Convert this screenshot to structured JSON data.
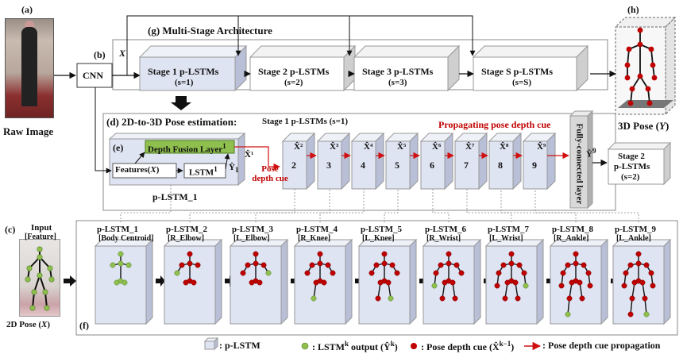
{
  "labels": {
    "a": "(a)",
    "raw_image": "Raw Image",
    "b": "(b)",
    "cnn": "CNN",
    "x_input": "X",
    "g": "(g) Multi-Stage Architecture",
    "h": "(h)",
    "pose3d": "3D Pose (",
    "pose3d_var": "Y",
    "pose3d_end": ")",
    "d": "(d) 2D-to-3D Pose estimation:",
    "d_sub": "Stage 1 p-LSTMs (s=1)",
    "propagating": "Propagating pose depth cue",
    "e": "(e)",
    "depth_fusion": "Depth Fusion Layer",
    "depth_fusion_sup": "1",
    "features": "Features(",
    "features_var": "X",
    "features_end": ")",
    "lstm1": "LSTM",
    "lstm1_sup": "1",
    "plstm1": "p-LSTM_1",
    "pose_depth_cue": [
      "Pose",
      "depth cue"
    ],
    "fc_layer": "Fully-connected layer",
    "c": "(c)",
    "input": "Input",
    "feature": "[Feature]",
    "pose2d": "2D Pose (",
    "pose2d_var": "X",
    "pose2d_end": ")",
    "f": "(f)",
    "y9_hat": "Ŷ",
    "y9_sup": "9",
    "y1": "Ŷ",
    "y1_sub": "1"
  },
  "stages": [
    {
      "title": "Stage 1 p-LSTMs",
      "sub": "(s=1)"
    },
    {
      "title": "Stage 2 p-LSTMs",
      "sub": "(s=2)"
    },
    {
      "title": "Stage 3 p-LSTMs",
      "sub": "(s=3)"
    },
    {
      "title": "Stage S p-LSTMs",
      "sub": "(s=S)"
    }
  ],
  "stage2_out": [
    "Stage 2",
    "p-LSTMs",
    "(s=2)"
  ],
  "chain_numbers": [
    "2",
    "3",
    "4",
    "5",
    "6",
    "7",
    "8",
    "9"
  ],
  "x_hats": [
    "X̂¹",
    "X̂²",
    "X̂³",
    "X̂⁴",
    "X̂⁵",
    "X̂⁶",
    "X̂⁷",
    "X̂⁸",
    "X̂⁹"
  ],
  "plstm_panels": [
    {
      "name": "p-LSTM_1",
      "joint": "[Body Centroid]"
    },
    {
      "name": "p-LSTM_2",
      "joint": "[R_Elbow]"
    },
    {
      "name": "p-LSTM_3",
      "joint": "[L_Elbow]"
    },
    {
      "name": "p-LSTM_4",
      "joint": "[R_Knee]"
    },
    {
      "name": "p-LSTM_5",
      "joint": "[L_Knee]"
    },
    {
      "name": "p-LSTM_6",
      "joint": "[R_Wrist]"
    },
    {
      "name": "p-LSTM_7",
      "joint": "[L_Wrist]"
    },
    {
      "name": "p-LSTM_8",
      "joint": "[R_Ankle]"
    },
    {
      "name": "p-LSTM_9",
      "joint": "[L_Ankle]"
    }
  ],
  "legend": [
    {
      "marker": "box",
      "text": ": p-LSTM"
    },
    {
      "marker": "green",
      "text": ": LSTM",
      "sup": "k",
      "rest": " output (Ŷ",
      "sup2": "k",
      "end": ")"
    },
    {
      "marker": "red",
      "text": ": Pose depth cue (X̂",
      "sup": "k−1",
      "end": ")"
    },
    {
      "marker": "arrow",
      "text": ": Pose depth cue propagation"
    }
  ],
  "colors": {
    "box_face": "#dfe4f2",
    "box_top": "#eef1f8",
    "box_side": "#b8bfd6",
    "stage_side": "#cfcfcf",
    "green_joint": "#8fbf4f",
    "red_joint": "#c00000",
    "depth_fusion": "#8fbf4f",
    "red_line": "#d01010"
  }
}
